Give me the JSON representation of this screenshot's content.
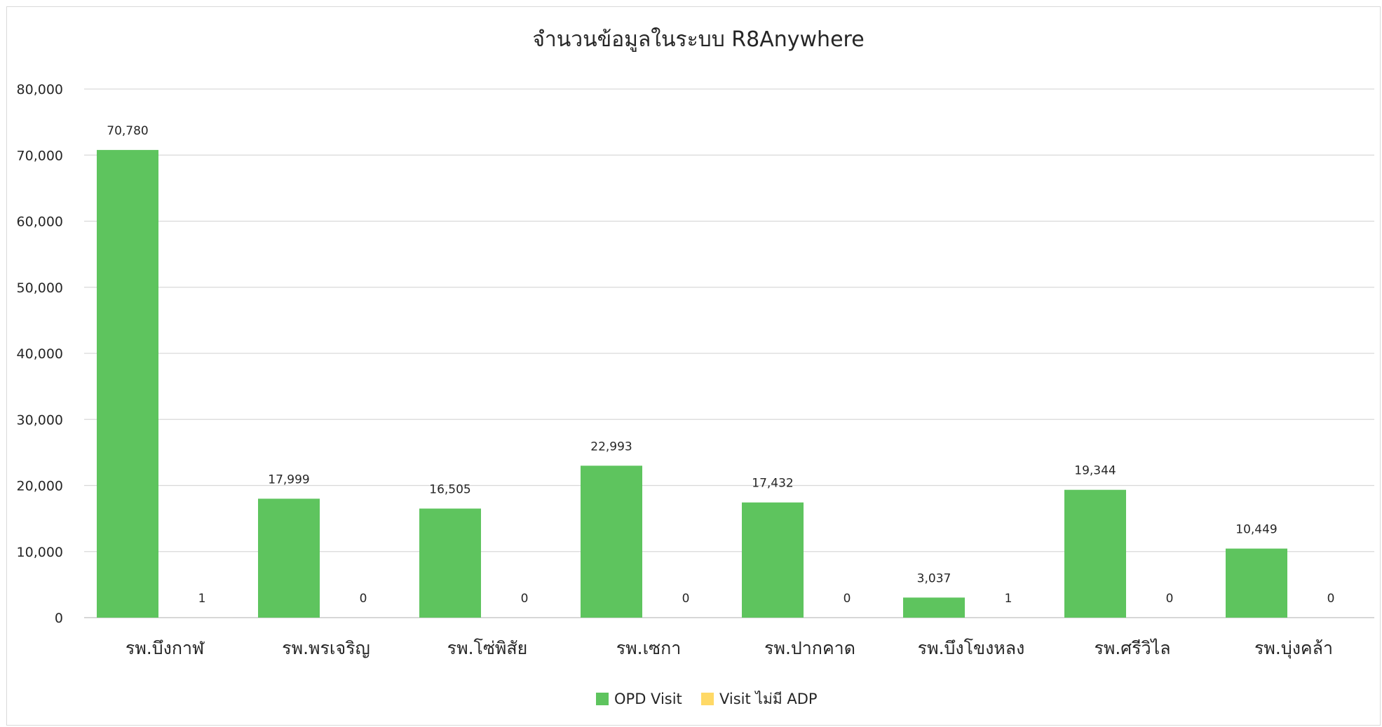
{
  "chart_data": {
    "type": "bar",
    "title": "จำนวนข้อมูลในระบบ R8Anywhere",
    "xlabel": "",
    "ylabel": "",
    "ylim": [
      0,
      80000
    ],
    "yticks": [
      0,
      10000,
      20000,
      30000,
      40000,
      50000,
      60000,
      70000,
      80000
    ],
    "ytick_labels": [
      "0",
      "10,000",
      "20,000",
      "30,000",
      "40,000",
      "50,000",
      "60,000",
      "70,000",
      "80,000"
    ],
    "grid": true,
    "legend_position": "bottom",
    "categories": [
      "รพ.บึงกาฬ",
      "รพ.พรเจริญ",
      "รพ.โซ่พิสัย",
      "รพ.เซกา",
      "รพ.ปากคาด",
      "รพ.บึงโขงหลง",
      "รพ.ศรีวิไล",
      "รพ.บุ่งคล้า"
    ],
    "series": [
      {
        "name": "OPD Visit",
        "color": "#5ec45e",
        "values": [
          70780,
          17999,
          16505,
          22993,
          17432,
          3037,
          19344,
          10449
        ],
        "labels": [
          "70,780",
          "17,999",
          "16,505",
          "22,993",
          "17,432",
          "3,037",
          "19,344",
          "10,449"
        ]
      },
      {
        "name": "Visit ไม่มี ADP",
        "color": "#ffd966",
        "values": [
          1,
          0,
          0,
          0,
          0,
          1,
          0,
          0
        ],
        "labels": [
          "1",
          "0",
          "0",
          "0",
          "0",
          "1",
          "0",
          "0"
        ]
      }
    ]
  }
}
